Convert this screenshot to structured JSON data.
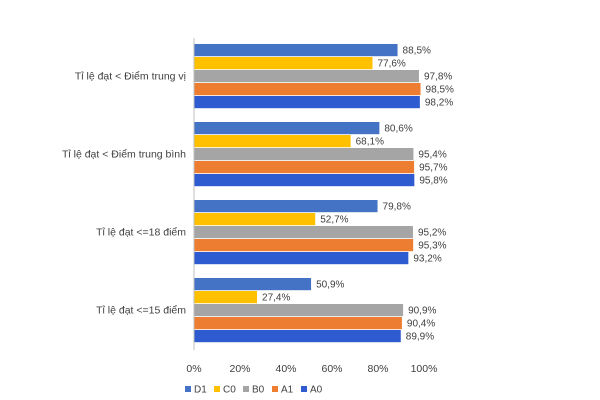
{
  "chart_data": {
    "type": "bar",
    "orientation": "horizontal",
    "categories": [
      "Tỉ lệ đạt < Điểm trung vị",
      "Tỉ lệ đạt < Điểm trung bình",
      "Tỉ lệ đạt <=18 điểm",
      "Tỉ lệ đạt <=15 điểm"
    ],
    "series": [
      {
        "name": "D1",
        "color": "#4472C4",
        "values": [
          88.5,
          80.6,
          79.8,
          50.9
        ],
        "labels": [
          "88,5%",
          "80,6%",
          "79,8%",
          "50,9%"
        ]
      },
      {
        "name": "C0",
        "color": "#FFC000",
        "values": [
          77.6,
          68.1,
          52.7,
          27.4
        ],
        "labels": [
          "77,6%",
          "68,1%",
          "52,7%",
          "27,4%"
        ]
      },
      {
        "name": "B0",
        "color": "#A5A5A5",
        "values": [
          97.8,
          95.4,
          95.2,
          90.9
        ],
        "labels": [
          "97,8%",
          "95,4%",
          "95,2%",
          "90,9%"
        ]
      },
      {
        "name": "A1",
        "color": "#ED7D31",
        "values": [
          98.5,
          95.7,
          95.3,
          90.4
        ],
        "labels": [
          "98,5%",
          "95,7%",
          "95,3%",
          "90,4%"
        ]
      },
      {
        "name": "A0",
        "color": "#2E5BCF",
        "values": [
          98.2,
          95.8,
          93.2,
          89.9
        ],
        "labels": [
          "98,2%",
          "95,8%",
          "93,2%",
          "89,9%"
        ]
      }
    ],
    "xlim": [
      0,
      100
    ],
    "xticks": [
      "0%",
      "20%",
      "40%",
      "60%",
      "80%",
      "100%"
    ],
    "title": "",
    "xlabel": "",
    "ylabel": "",
    "legend_position": "bottom",
    "grid": false
  }
}
